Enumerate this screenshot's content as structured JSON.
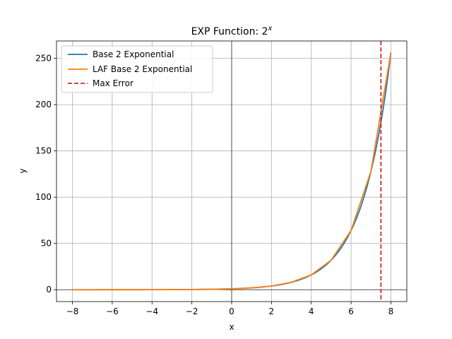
{
  "chart_data": {
    "type": "line",
    "title": "EXP Function: 2",
    "title_superscript": "x",
    "xlabel": "x",
    "ylabel": "y",
    "xlim": [
      -8.8,
      8.8
    ],
    "ylim": [
      -12.8,
      268.8
    ],
    "x_ticks": [
      -8,
      -6,
      -4,
      -2,
      0,
      2,
      4,
      6,
      8
    ],
    "x_tick_labels": [
      "−8",
      "−6",
      "−4",
      "−2",
      "0",
      "2",
      "4",
      "6",
      "8"
    ],
    "y_ticks": [
      0,
      50,
      100,
      150,
      200,
      250
    ],
    "y_tick_labels": [
      "0",
      "50",
      "100",
      "150",
      "200",
      "250"
    ],
    "grid": true,
    "axis_lines_at_zero": true,
    "legend_position": "top-left",
    "series": [
      {
        "name": "Base 2 Exponential",
        "color": "#1f77b4",
        "style": "solid",
        "function": "2^x",
        "x_range": [
          -8,
          8
        ]
      },
      {
        "name": "LAF Base 2 Exponential",
        "color": "#ff7f0e",
        "style": "solid",
        "x": [
          -8,
          -7,
          -6,
          -5,
          -4,
          -3,
          -2,
          -1,
          0,
          1,
          2,
          3,
          4,
          5,
          6,
          7,
          8
        ],
        "y": [
          0.0039,
          0.0078,
          0.0156,
          0.0313,
          0.0625,
          0.125,
          0.25,
          0.5,
          1,
          2,
          4,
          8,
          16,
          32,
          64,
          128,
          256
        ]
      },
      {
        "name": "Max Error",
        "color": "#d62728",
        "style": "dashed",
        "vertical_line_x": 7.5
      }
    ]
  }
}
